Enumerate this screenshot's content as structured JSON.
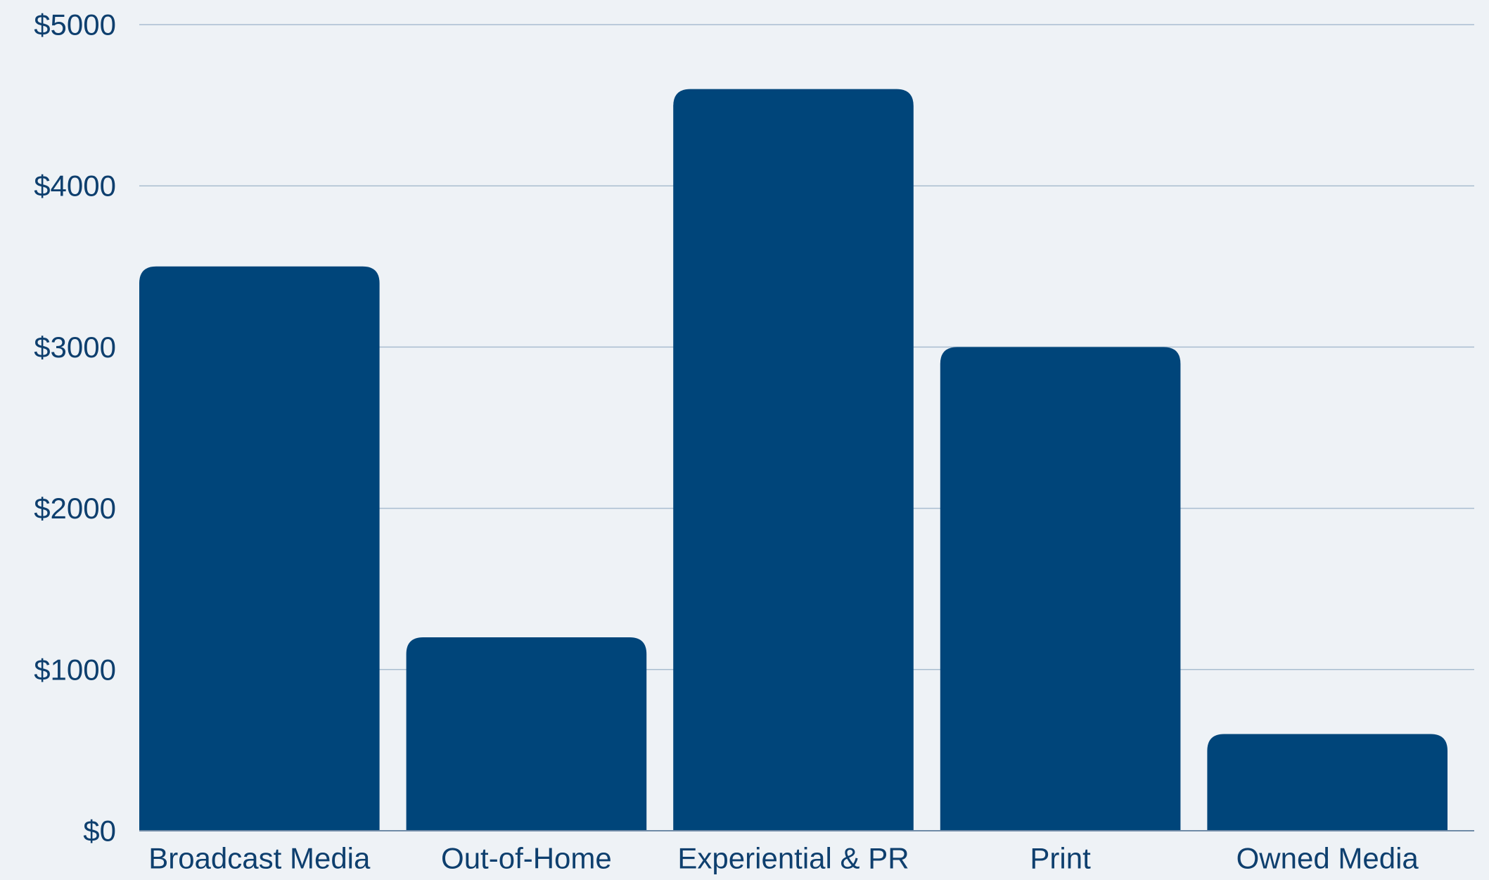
{
  "chart_data": {
    "type": "bar",
    "categories": [
      "Broadcast Media",
      "Out-of-Home",
      "Experiential & PR",
      "Print",
      "Owned Media"
    ],
    "values": [
      3500,
      1200,
      4600,
      3000,
      600
    ],
    "ylim": [
      0,
      5000
    ],
    "yticks": [
      0,
      1000,
      2000,
      3000,
      4000,
      5000
    ],
    "ytick_labels": [
      "$0",
      "$1000",
      "$2000",
      "$3000",
      "$4000",
      "$5000"
    ],
    "grid": true,
    "legend": "none",
    "colors": {
      "background": "#eef2f6",
      "bar": "#00457a",
      "grid": "#a9bdd0",
      "text": "#0e3f6e",
      "baseline": "#6f8aa6"
    }
  }
}
